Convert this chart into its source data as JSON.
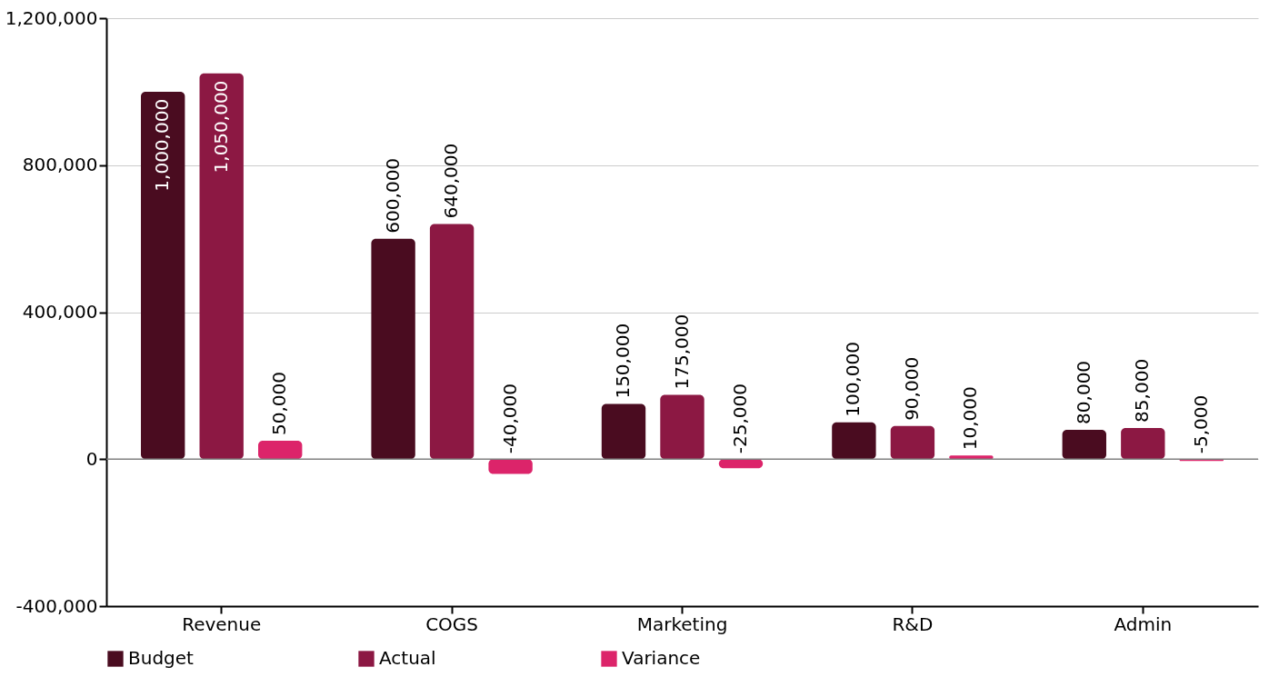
{
  "chart_data": {
    "type": "bar",
    "categories": [
      "Revenue",
      "COGS",
      "Marketing",
      "R&D",
      "Admin"
    ],
    "series": [
      {
        "name": "Budget",
        "color": "#4a0c20",
        "values": [
          1000000,
          600000,
          150000,
          100000,
          80000
        ],
        "value_labels": [
          "1,000,000",
          "600,000",
          "150,000",
          "100,000",
          "80,000"
        ]
      },
      {
        "name": "Actual",
        "color": "#8c1843",
        "values": [
          1050000,
          640000,
          175000,
          90000,
          85000
        ],
        "value_labels": [
          "1,050,000",
          "640,000",
          "175,000",
          "90,000",
          "85,000"
        ]
      },
      {
        "name": "Variance",
        "color": "#dc246a",
        "values": [
          50000,
          -40000,
          -25000,
          10000,
          -5000
        ],
        "value_labels": [
          "50,000",
          "-40,000",
          "-25,000",
          "10,000",
          "-5,000"
        ]
      }
    ],
    "ylim": [
      -400000,
      1200000
    ],
    "yticks": [
      {
        "value": -400000,
        "label": "-400,000"
      },
      {
        "value": 0,
        "label": "0"
      },
      {
        "value": 400000,
        "label": "400,000"
      },
      {
        "value": 800000,
        "label": "800,000"
      },
      {
        "value": 1200000,
        "label": "1,200,000"
      }
    ],
    "ref_lines": [
      {
        "axis": "y",
        "value": 0,
        "label": null,
        "color": "#808080"
      }
    ],
    "grid": "y",
    "legend": "bottom"
  }
}
